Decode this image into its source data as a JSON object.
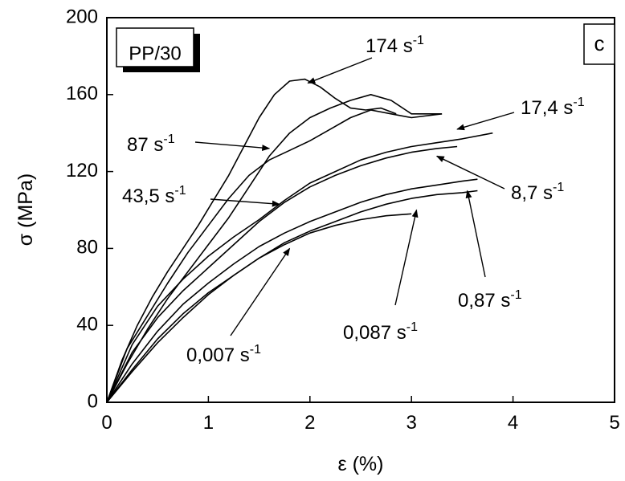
{
  "chart_data": {
    "type": "line",
    "panel_label": "c",
    "material_label": "PP/30",
    "xlabel": "ε (%)",
    "ylabel": "σ (MPa)",
    "xlim": [
      0,
      5
    ],
    "ylim": [
      0,
      200
    ],
    "x_ticks": [
      0,
      1,
      2,
      3,
      4,
      5
    ],
    "y_ticks": [
      0,
      40,
      80,
      120,
      160,
      200
    ],
    "grid": false,
    "series": [
      {
        "name": "174 s-1",
        "x": [
          0,
          0.15,
          0.3,
          0.45,
          0.6,
          0.75,
          0.9,
          1.05,
          1.2,
          1.35,
          1.5,
          1.65,
          1.8,
          1.95,
          2.1,
          2.25,
          2.4,
          2.55,
          2.7,
          2.85
        ],
        "y": [
          0,
          22,
          40,
          55,
          68,
          80,
          92,
          105,
          118,
          133,
          148,
          160,
          167,
          168,
          164,
          158,
          153,
          152,
          153,
          150
        ]
      },
      {
        "name": "87 s-1",
        "x": [
          0,
          0.2,
          0.4,
          0.6,
          0.8,
          1.0,
          1.2,
          1.4,
          1.6,
          1.8,
          2.0,
          2.2,
          2.4,
          2.6,
          2.8,
          3.0,
          3.3
        ],
        "y": [
          0,
          20,
          38,
          54,
          68,
          82,
          96,
          112,
          128,
          140,
          148,
          153,
          157,
          160,
          157,
          150,
          150
        ]
      },
      {
        "name": "43,5 s-1",
        "x": [
          0,
          0.2,
          0.4,
          0.6,
          0.8,
          1.0,
          1.2,
          1.4,
          1.6,
          1.8,
          2.0,
          2.2,
          2.4,
          2.6,
          2.8,
          3.0,
          3.3
        ],
        "y": [
          0,
          28,
          45,
          62,
          78,
          92,
          106,
          118,
          126,
          131,
          136,
          142,
          148,
          152,
          150,
          148,
          150
        ]
      },
      {
        "name": "17,4 s-1",
        "x": [
          0,
          0.25,
          0.5,
          0.75,
          1.0,
          1.25,
          1.5,
          1.75,
          2.0,
          2.25,
          2.5,
          2.75,
          3.0,
          3.25,
          3.5,
          3.8
        ],
        "y": [
          0,
          30,
          50,
          64,
          76,
          86,
          95,
          105,
          114,
          120,
          126,
          130,
          133,
          135,
          137,
          140
        ]
      },
      {
        "name": "8,7 s-1",
        "x": [
          0,
          0.25,
          0.5,
          0.75,
          1.0,
          1.25,
          1.5,
          1.75,
          2.0,
          2.25,
          2.5,
          2.75,
          3.0,
          3.25,
          3.45
        ],
        "y": [
          0,
          26,
          44,
          58,
          70,
          82,
          94,
          104,
          112,
          118,
          123,
          127,
          130,
          132,
          133
        ]
      },
      {
        "name": "0,87 s-1",
        "x": [
          0,
          0.25,
          0.5,
          0.75,
          1.0,
          1.25,
          1.5,
          1.75,
          2.0,
          2.25,
          2.5,
          2.75,
          3.0,
          3.25,
          3.5,
          3.65
        ],
        "y": [
          0,
          20,
          37,
          51,
          62,
          72,
          81,
          88,
          94,
          99,
          104,
          108,
          111,
          113,
          115,
          116
        ]
      },
      {
        "name": "0,087 s-1",
        "x": [
          0,
          0.25,
          0.5,
          0.75,
          1.0,
          1.25,
          1.5,
          1.75,
          2.0,
          2.25,
          2.5,
          2.75,
          3.0,
          3.25,
          3.5,
          3.65
        ],
        "y": [
          0,
          17,
          33,
          46,
          57,
          66,
          75,
          83,
          89,
          94,
          99,
          103,
          106,
          108,
          109,
          110
        ]
      },
      {
        "name": "0,007 s-1",
        "x": [
          0,
          0.25,
          0.5,
          0.75,
          1.0,
          1.25,
          1.5,
          1.75,
          2.0,
          2.25,
          2.5,
          2.75,
          3.0
        ],
        "y": [
          0,
          16,
          31,
          44,
          56,
          66,
          75,
          82,
          88,
          92,
          95,
          97,
          98
        ]
      }
    ],
    "annotations": [
      {
        "text": "174 s",
        "sup": "-1",
        "point_to": [
          1.98,
          166
        ]
      },
      {
        "text": "87 s",
        "sup": "-1",
        "point_to": [
          1.6,
          132
        ]
      },
      {
        "text": "43,5 s",
        "sup": "-1",
        "point_to": [
          1.7,
          103
        ]
      },
      {
        "text": "17,4 s",
        "sup": "-1",
        "point_to": [
          3.45,
          142
        ]
      },
      {
        "text": "8,7 s",
        "sup": "-1",
        "point_to": [
          3.25,
          128
        ]
      },
      {
        "text": "0,87 s",
        "sup": "-1",
        "point_to": [
          3.55,
          110
        ]
      },
      {
        "text": "0,087 s",
        "sup": "-1",
        "point_to": [
          3.05,
          100
        ]
      },
      {
        "text": "0,007 s",
        "sup": "-1",
        "point_to": [
          1.8,
          80
        ]
      }
    ]
  }
}
